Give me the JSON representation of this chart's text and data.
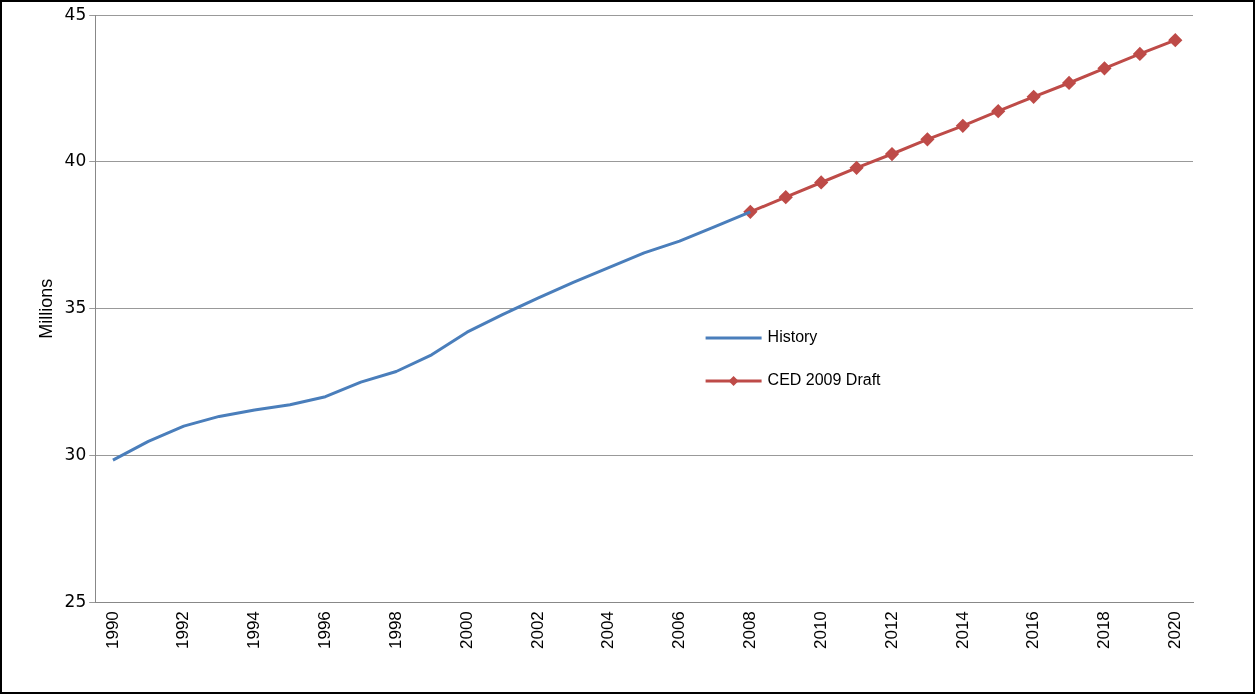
{
  "chart_data": {
    "type": "line",
    "ylabel": "Millions",
    "categories": [
      "1990",
      null,
      "1992",
      null,
      "1994",
      null,
      "1996",
      null,
      "1998",
      null,
      "2000",
      null,
      "2002",
      null,
      "2004",
      null,
      "2006",
      null,
      "2008",
      null,
      "2010",
      null,
      "2012",
      null,
      "2014",
      null,
      "2016",
      null,
      "2018",
      null,
      "2020"
    ],
    "series": [
      {
        "name": "History",
        "color": "#4a7ebb",
        "marker": "none",
        "values": [
          29.84,
          30.48,
          31.0,
          31.33,
          31.55,
          31.73,
          32.0,
          32.5,
          32.86,
          33.43,
          34.2,
          34.8,
          35.36,
          35.9,
          36.4,
          36.9,
          37.3,
          37.8,
          38.3,
          null,
          null,
          null,
          null,
          null,
          null,
          null,
          null,
          null,
          null,
          null,
          null
        ]
      },
      {
        "name": "CED 2009 Draft",
        "color": "#be4b48",
        "marker": "diamond",
        "values": [
          null,
          null,
          null,
          null,
          null,
          null,
          null,
          null,
          null,
          null,
          null,
          null,
          null,
          null,
          null,
          null,
          null,
          null,
          38.3,
          38.8,
          39.3,
          39.8,
          40.27,
          40.77,
          41.23,
          41.73,
          42.22,
          42.69,
          43.19,
          43.68,
          44.15
        ]
      }
    ],
    "ylim": [
      25,
      45
    ],
    "yticks": [
      25,
      30,
      35,
      40,
      45
    ],
    "grid": "y",
    "legend": "center right",
    "line_style": "solid"
  }
}
